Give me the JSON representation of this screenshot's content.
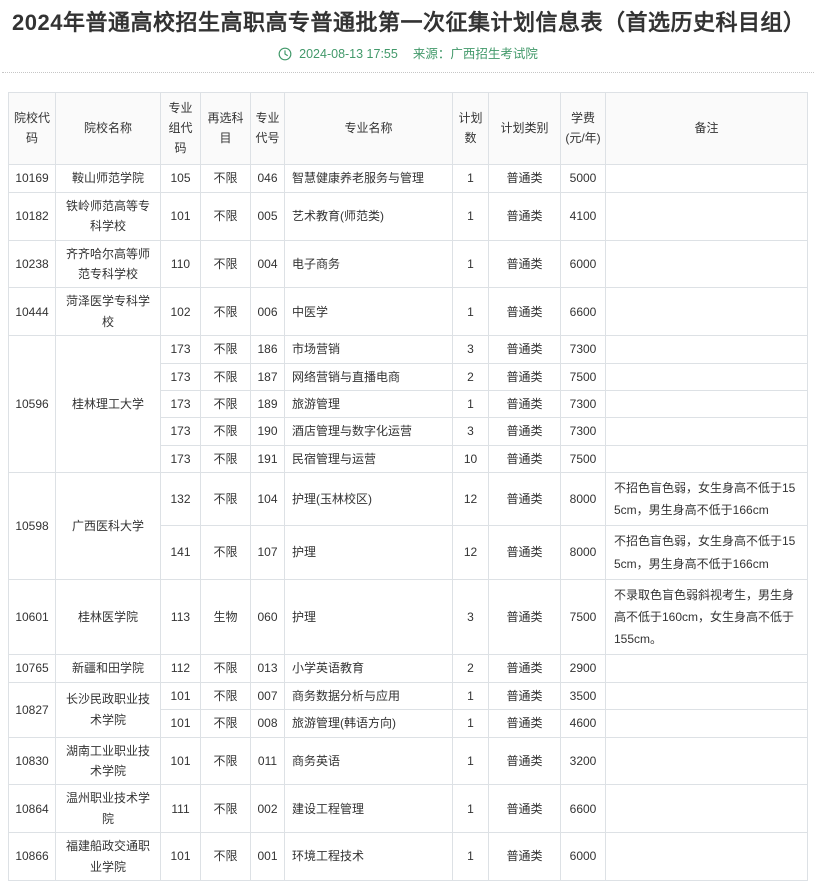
{
  "page": {
    "title": "2024年普通高校招生高职高专普通批第一次征集计划信息表（首选历史科目组）",
    "timestamp": "2024-08-13 17:55",
    "source_label": "来源：广西招生考试院"
  },
  "colors": {
    "accent_green": "#42996a",
    "title_text": "#333333",
    "cell_text": "#333333",
    "table_border": "#dde1e5",
    "header_bg": "#fafafa"
  },
  "icons": {
    "clock": "clock-icon"
  },
  "table": {
    "headers": [
      "院校代码",
      "院校名称",
      "专业组代码",
      "再选科目",
      "专业代号",
      "专业名称",
      "计划数",
      "计划类别",
      "学费(元/年)",
      "备注"
    ],
    "schools": [
      {
        "code": "10169",
        "name": "鞍山师范学院",
        "majors": [
          {
            "group_code": "105",
            "re_subject": "不限",
            "major_code": "046",
            "major_name": "智慧健康养老服务与管理",
            "plan_count": "1",
            "plan_type": "普通类",
            "tuition": "5000",
            "remark": ""
          }
        ]
      },
      {
        "code": "10182",
        "name": "铁岭师范高等专科学校",
        "majors": [
          {
            "group_code": "101",
            "re_subject": "不限",
            "major_code": "005",
            "major_name": "艺术教育(师范类)",
            "plan_count": "1",
            "plan_type": "普通类",
            "tuition": "4100",
            "remark": ""
          }
        ]
      },
      {
        "code": "10238",
        "name": "齐齐哈尔高等师范专科学校",
        "majors": [
          {
            "group_code": "110",
            "re_subject": "不限",
            "major_code": "004",
            "major_name": "电子商务",
            "plan_count": "1",
            "plan_type": "普通类",
            "tuition": "6000",
            "remark": ""
          }
        ]
      },
      {
        "code": "10444",
        "name": "菏泽医学专科学校",
        "majors": [
          {
            "group_code": "102",
            "re_subject": "不限",
            "major_code": "006",
            "major_name": "中医学",
            "plan_count": "1",
            "plan_type": "普通类",
            "tuition": "6600",
            "remark": ""
          }
        ]
      },
      {
        "code": "10596",
        "name": "桂林理工大学",
        "majors": [
          {
            "group_code": "173",
            "re_subject": "不限",
            "major_code": "186",
            "major_name": "市场营销",
            "plan_count": "3",
            "plan_type": "普通类",
            "tuition": "7300",
            "remark": ""
          },
          {
            "group_code": "173",
            "re_subject": "不限",
            "major_code": "187",
            "major_name": "网络营销与直播电商",
            "plan_count": "2",
            "plan_type": "普通类",
            "tuition": "7500",
            "remark": ""
          },
          {
            "group_code": "173",
            "re_subject": "不限",
            "major_code": "189",
            "major_name": "旅游管理",
            "plan_count": "1",
            "plan_type": "普通类",
            "tuition": "7300",
            "remark": ""
          },
          {
            "group_code": "173",
            "re_subject": "不限",
            "major_code": "190",
            "major_name": "酒店管理与数字化运营",
            "plan_count": "3",
            "plan_type": "普通类",
            "tuition": "7300",
            "remark": ""
          },
          {
            "group_code": "173",
            "re_subject": "不限",
            "major_code": "191",
            "major_name": "民宿管理与运营",
            "plan_count": "10",
            "plan_type": "普通类",
            "tuition": "7500",
            "remark": ""
          }
        ]
      },
      {
        "code": "10598",
        "name": "广西医科大学",
        "majors": [
          {
            "group_code": "132",
            "re_subject": "不限",
            "major_code": "104",
            "major_name": "护理(玉林校区)",
            "plan_count": "12",
            "plan_type": "普通类",
            "tuition": "8000",
            "remark": "不招色盲色弱，女生身高不低于155cm，男生身高不低于166cm"
          },
          {
            "group_code": "141",
            "re_subject": "不限",
            "major_code": "107",
            "major_name": "护理",
            "plan_count": "12",
            "plan_type": "普通类",
            "tuition": "8000",
            "remark": "不招色盲色弱，女生身高不低于155cm，男生身高不低于166cm"
          }
        ]
      },
      {
        "code": "10601",
        "name": "桂林医学院",
        "majors": [
          {
            "group_code": "113",
            "re_subject": "生物",
            "major_code": "060",
            "major_name": "护理",
            "plan_count": "3",
            "plan_type": "普通类",
            "tuition": "7500",
            "remark": "不录取色盲色弱斜视考生，男生身高不低于160cm，女生身高不低于155cm。"
          }
        ]
      },
      {
        "code": "10765",
        "name": "新疆和田学院",
        "majors": [
          {
            "group_code": "112",
            "re_subject": "不限",
            "major_code": "013",
            "major_name": "小学英语教育",
            "plan_count": "2",
            "plan_type": "普通类",
            "tuition": "2900",
            "remark": ""
          }
        ]
      },
      {
        "code": "10827",
        "name": "长沙民政职业技术学院",
        "majors": [
          {
            "group_code": "101",
            "re_subject": "不限",
            "major_code": "007",
            "major_name": "商务数据分析与应用",
            "plan_count": "1",
            "plan_type": "普通类",
            "tuition": "3500",
            "remark": ""
          },
          {
            "group_code": "101",
            "re_subject": "不限",
            "major_code": "008",
            "major_name": "旅游管理(韩语方向)",
            "plan_count": "1",
            "plan_type": "普通类",
            "tuition": "4600",
            "remark": ""
          }
        ]
      },
      {
        "code": "10830",
        "name": "湖南工业职业技术学院",
        "majors": [
          {
            "group_code": "101",
            "re_subject": "不限",
            "major_code": "011",
            "major_name": "商务英语",
            "plan_count": "1",
            "plan_type": "普通类",
            "tuition": "3200",
            "remark": ""
          }
        ]
      },
      {
        "code": "10864",
        "name": "温州职业技术学院",
        "majors": [
          {
            "group_code": "111",
            "re_subject": "不限",
            "major_code": "002",
            "major_name": "建设工程管理",
            "plan_count": "1",
            "plan_type": "普通类",
            "tuition": "6600",
            "remark": ""
          }
        ]
      },
      {
        "code": "10866",
        "name": "福建船政交通职业学院",
        "majors": [
          {
            "group_code": "101",
            "re_subject": "不限",
            "major_code": "001",
            "major_name": "环境工程技术",
            "plan_count": "1",
            "plan_type": "普通类",
            "tuition": "6000",
            "remark": ""
          }
        ]
      }
    ]
  }
}
